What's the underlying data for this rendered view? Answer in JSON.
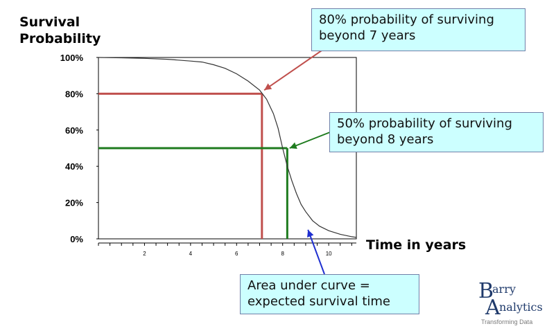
{
  "chart_data": {
    "type": "line",
    "title": "",
    "ylabel_lines": [
      "Survival",
      "Probability"
    ],
    "xlabel": "Time in years",
    "xlim": [
      0,
      11.2
    ],
    "ylim": [
      0,
      1
    ],
    "grid": false,
    "y_ticks": [
      {
        "value": 1.0,
        "label": "100%"
      },
      {
        "value": 0.8,
        "label": "80%"
      },
      {
        "value": 0.6,
        "label": "60%"
      },
      {
        "value": 0.4,
        "label": "40%"
      },
      {
        "value": 0.2,
        "label": "20%"
      },
      {
        "value": 0.0,
        "label": "0%"
      }
    ],
    "x_minor_ticks": [
      0,
      0.5,
      1,
      1.5,
      2,
      2.5,
      3,
      3.5,
      4,
      4.5,
      5,
      5.5,
      6,
      6.5,
      7,
      7.5,
      8,
      8.5,
      9,
      9.5,
      10,
      10.5,
      11
    ],
    "x_tick_labels": [
      {
        "value": 2,
        "label": "2"
      },
      {
        "value": 4,
        "label": "4"
      },
      {
        "value": 6,
        "label": "6"
      },
      {
        "value": 8,
        "label": "8"
      },
      {
        "value": 10,
        "label": "10"
      }
    ],
    "series": [
      {
        "color": "#333333",
        "x": [
          0,
          1,
          2,
          3,
          4,
          4.5,
          5,
          5.5,
          6,
          6.5,
          7,
          7.3,
          7.6,
          7.8,
          8,
          8.2,
          8.4,
          8.6,
          8.8,
          9,
          9.3,
          9.6,
          10,
          10.5,
          11,
          11.2
        ],
        "y": [
          1.0,
          0.998,
          0.995,
          0.99,
          0.98,
          0.975,
          0.96,
          0.94,
          0.91,
          0.87,
          0.82,
          0.77,
          0.69,
          0.61,
          0.5,
          0.4,
          0.32,
          0.25,
          0.19,
          0.15,
          0.1,
          0.07,
          0.045,
          0.025,
          0.012,
          0.008
        ]
      }
    ],
    "reference_lines": [
      {
        "x": 7.1,
        "y": 0.8,
        "color": "#c0504d"
      },
      {
        "x": 8.2,
        "y": 0.5,
        "color": "#1e7b1e"
      }
    ],
    "annotations": [
      {
        "id": "callout-80",
        "lines": [
          "80% probability of surviving",
          "beyond 7 years"
        ],
        "arrow_color": "#c0504d",
        "target": {
          "x": 7.2,
          "y": 0.82
        }
      },
      {
        "id": "callout-50",
        "lines": [
          "50% probability of surviving",
          "beyond 8 years"
        ],
        "arrow_color": "#1e7b1e",
        "target": {
          "x": 8.3,
          "y": 0.5
        }
      },
      {
        "id": "callout-area",
        "lines": [
          "Area under curve =",
          "expected survival time"
        ],
        "arrow_color": "#1f2fd0",
        "target": {
          "x": 9.1,
          "y": 0.05
        }
      }
    ]
  },
  "logo": {
    "letter_b": "B",
    "text_b": "arry",
    "letter_a": "A",
    "text_a": "nalytics",
    "tagline": "Transforming Data"
  }
}
